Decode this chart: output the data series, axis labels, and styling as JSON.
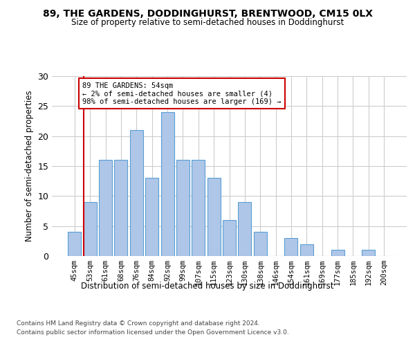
{
  "title1": "89, THE GARDENS, DODDINGHURST, BRENTWOOD, CM15 0LX",
  "title2": "Size of property relative to semi-detached houses in Doddinghurst",
  "xlabel": "Distribution of semi-detached houses by size in Doddinghurst",
  "ylabel": "Number of semi-detached properties",
  "footer1": "Contains HM Land Registry data © Crown copyright and database right 2024.",
  "footer2": "Contains public sector information licensed under the Open Government Licence v3.0.",
  "bar_labels": [
    "45sqm",
    "53sqm",
    "61sqm",
    "68sqm",
    "76sqm",
    "84sqm",
    "92sqm",
    "99sqm",
    "107sqm",
    "115sqm",
    "123sqm",
    "130sqm",
    "138sqm",
    "146sqm",
    "154sqm",
    "161sqm",
    "169sqm",
    "177sqm",
    "185sqm",
    "192sqm",
    "200sqm"
  ],
  "bar_values": [
    4,
    9,
    16,
    16,
    21,
    13,
    24,
    16,
    16,
    13,
    6,
    9,
    4,
    0,
    3,
    2,
    0,
    1,
    0,
    1,
    0
  ],
  "bar_color": "#aec6e8",
  "bar_edge_color": "#5a9fd4",
  "annotation_box_text": "89 THE GARDENS: 54sqm\n← 2% of semi-detached houses are smaller (4)\n98% of semi-detached houses are larger (169) →",
  "annotation_box_color": "#ffffff",
  "annotation_box_edge_color": "#cc0000",
  "vline_x_idx": 1,
  "vline_color": "#cc0000",
  "ylim": [
    0,
    30
  ],
  "yticks": [
    0,
    5,
    10,
    15,
    20,
    25,
    30
  ],
  "grid_color": "#cccccc",
  "background_color": "#ffffff",
  "fig_width": 6.0,
  "fig_height": 5.0
}
